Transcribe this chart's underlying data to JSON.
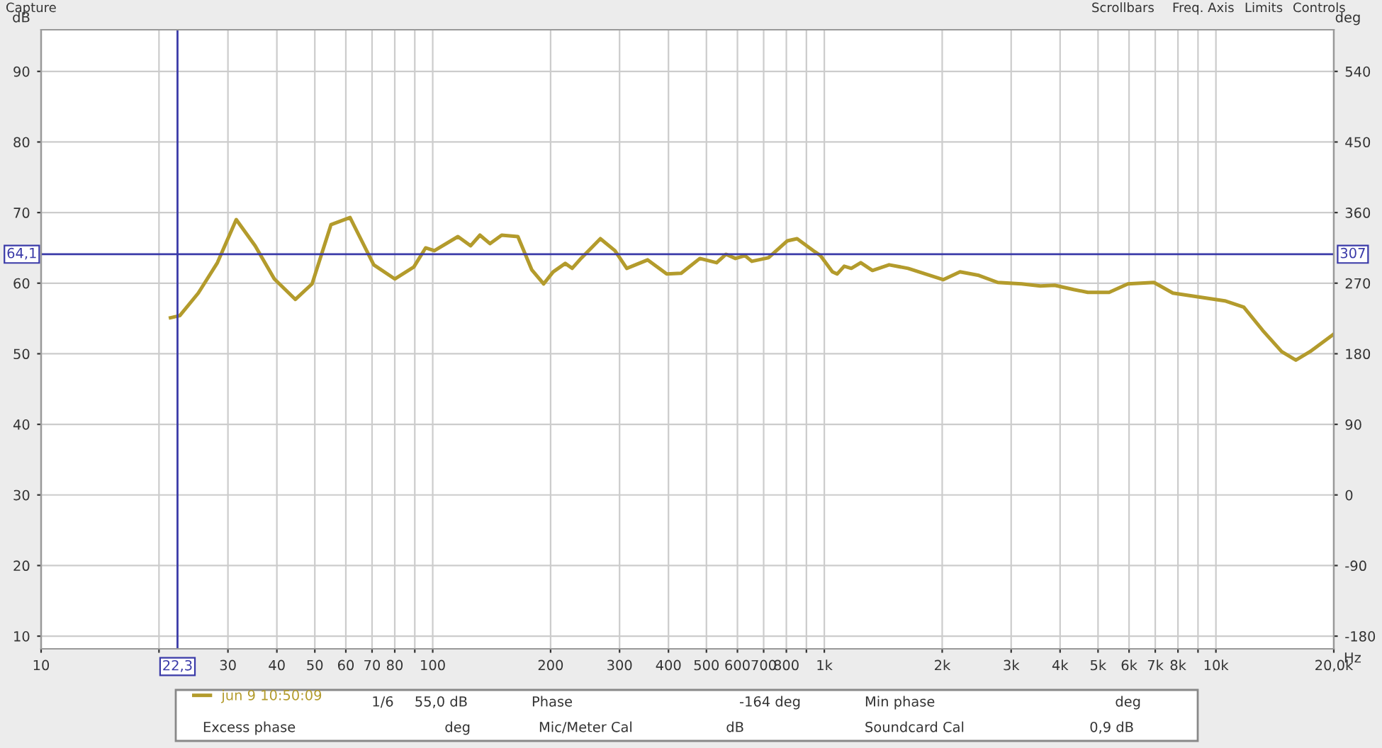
{
  "chart_data": {
    "type": "line",
    "xlabel": "Hz",
    "ylabel": "dB",
    "y2label": "deg",
    "log": "x",
    "grid": true,
    "legend": "bottom",
    "marker": "none",
    "line_style": "solid",
    "xlim": [
      10,
      20000
    ],
    "ylim": [
      8.2,
      95.9
    ],
    "y2lim": [
      -196.2,
      593.1
    ],
    "xticks": [
      10,
      {
        "value": 20,
        "label": null
      },
      30,
      40,
      50,
      60,
      70,
      80,
      {
        "value": 90,
        "label": null
      },
      100,
      200,
      300,
      400,
      500,
      600,
      700,
      800,
      {
        "value": 900,
        "label": null
      },
      {
        "value": 1000,
        "label": "1k"
      },
      {
        "value": 2000,
        "label": "2k"
      },
      {
        "value": 3000,
        "label": "3k"
      },
      {
        "value": 4000,
        "label": "4k"
      },
      {
        "value": 5000,
        "label": "5k"
      },
      {
        "value": 6000,
        "label": "6k"
      },
      {
        "value": 7000,
        "label": "7k"
      },
      {
        "value": 8000,
        "label": "8k"
      },
      {
        "value": 9000,
        "label": null
      },
      {
        "value": 10000,
        "label": "10k"
      },
      {
        "value": 20000,
        "label": "20,0k"
      }
    ],
    "yticks": [
      10,
      20,
      30,
      40,
      50,
      60,
      70,
      80,
      90
    ],
    "y2ticks": [
      -180,
      -90,
      0,
      90,
      180,
      270,
      360,
      450,
      540
    ],
    "ref_lines": [
      {
        "axis": "x",
        "value": 22.3,
        "label": "22,3",
        "color": "#3a3aa8"
      },
      {
        "axis": "y",
        "value": 64.1,
        "label": "64,1",
        "color": "#3a3aa8"
      }
    ],
    "series": [
      {
        "name": "jun 9 10:50:09",
        "color": "#b39b2c",
        "x": [
          21.4,
          22.6,
          25.2,
          28.2,
          31.5,
          35.2,
          39.4,
          44.6,
          49.2,
          55.0,
          61.5,
          70.7,
          80.0,
          89.5,
          95.9,
          101,
          116,
          125,
          132,
          140,
          150,
          165,
          179,
          192,
          203,
          218,
          227,
          240,
          268,
          292,
          313,
          354,
          396,
          431,
          481,
          531,
          561,
          593,
          627,
          653,
          720,
          805,
          852,
          938,
          978,
          1049,
          1078,
          1124,
          1172,
          1239,
          1327,
          1464,
          1636,
          2014,
          2221,
          2481,
          2773,
          3189,
          3564,
          3874,
          4331,
          4709,
          5336,
          5961,
          6946,
          7764,
          8918,
          10534,
          11780,
          13170,
          14720,
          16000,
          17390,
          20000
        ],
        "values": [
          55.1,
          55.4,
          58.6,
          62.9,
          69.0,
          65.3,
          60.6,
          57.7,
          59.9,
          68.3,
          69.3,
          62.6,
          60.6,
          62.3,
          65.0,
          64.6,
          66.6,
          65.3,
          66.8,
          65.6,
          66.8,
          66.6,
          61.9,
          59.9,
          61.6,
          62.8,
          62.1,
          63.6,
          66.3,
          64.6,
          62.1,
          63.3,
          61.3,
          61.4,
          63.5,
          62.9,
          64.1,
          63.5,
          63.9,
          63.1,
          63.6,
          66.0,
          66.3,
          64.6,
          63.9,
          61.6,
          61.3,
          62.4,
          62.1,
          62.9,
          61.8,
          62.6,
          62.1,
          60.5,
          61.6,
          61.1,
          60.1,
          59.9,
          59.6,
          59.7,
          59.1,
          58.7,
          58.7,
          59.9,
          60.1,
          58.6,
          58.1,
          57.5,
          56.6,
          53.3,
          50.3,
          49.1,
          50.3,
          52.8
        ]
      }
    ],
    "annotations": [
      "Capture",
      "Scrollbars",
      "Freq. Axis",
      "Limits",
      "Controls",
      "1/6",
      "55,0 dB",
      "Phase",
      "-164 deg",
      "Min phase",
      "deg",
      "Excess phase",
      "deg",
      "Mic/Meter Cal",
      "dB",
      "Soundcard Cal",
      "0,9 dB",
      {
        "text": "307",
        "x": 20000,
        "y": 64.1
      }
    ]
  }
}
